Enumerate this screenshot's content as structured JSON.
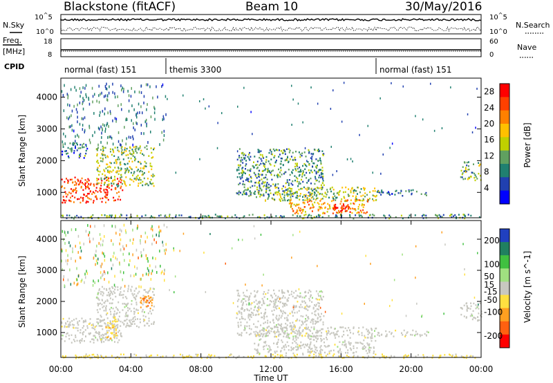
{
  "header": {
    "site": "Blackstone (fitACF)",
    "beam": "Beam 10",
    "date": "30/May/2016"
  },
  "left_labels": {
    "nsky": "N.Sky",
    "nsky_ticks": [
      "10^5",
      "10^0"
    ],
    "freq": "Freq.",
    "freq_unit": "[MHz]",
    "freq_ticks": [
      "18",
      "8"
    ],
    "cpid": "CPID"
  },
  "right_labels": {
    "nsearch": "N.Search",
    "nsearch_ticks": [
      "10^5",
      "10^0"
    ],
    "nave": "Nave",
    "nave_ticks": [
      "60",
      "0"
    ]
  },
  "cpid_segments": [
    {
      "label": "normal (fast) 151",
      "start_hour": 0
    },
    {
      "label": "themis 3300",
      "start_hour": 6
    },
    {
      "label": "normal (fast) 151",
      "start_hour": 18
    }
  ],
  "x_axis": {
    "label": "Time UT",
    "ticks": [
      "00:00",
      "04:00",
      "08:00",
      "12:00",
      "16:00",
      "20:00",
      "00:00"
    ],
    "range_hours": [
      0,
      24
    ]
  },
  "chart_data": [
    {
      "type": "heatmap",
      "title": "",
      "xlabel": "Time UT",
      "ylabel": "Slant Range [km]",
      "ylim": [
        200,
        4600
      ],
      "y_ticks": [
        1000,
        2000,
        3000,
        4000
      ],
      "colorbar": {
        "label": "Power [dB]",
        "ticks": [
          4,
          8,
          12,
          16,
          20,
          24,
          28
        ],
        "range": [
          0,
          30
        ],
        "colors": [
          "#0000ff",
          "#2040b0",
          "#208070",
          "#60a060",
          "#c0d000",
          "#ffc000",
          "#ff8000",
          "#ff4000",
          "#ff0000"
        ]
      },
      "echo_regions": [
        {
          "t_start": 0.0,
          "t_end": 3.5,
          "range_min": 700,
          "range_max": 1500,
          "power": 26
        },
        {
          "t_start": 0.0,
          "t_end": 1.5,
          "range_min": 2100,
          "range_max": 2600,
          "power": 8
        },
        {
          "t_start": 2.0,
          "t_end": 5.3,
          "range_min": 1200,
          "range_max": 2500,
          "power": 14
        },
        {
          "t_start": 0.0,
          "t_end": 24.0,
          "range_min": 200,
          "range_max": 330,
          "power": 10
        },
        {
          "t_start": 11.0,
          "t_end": 18.0,
          "range_min": 750,
          "range_max": 1200,
          "power": 14
        },
        {
          "t_start": 13.0,
          "t_end": 17.5,
          "range_min": 350,
          "range_max": 800,
          "power": 20
        },
        {
          "t_start": 15.5,
          "t_end": 16.5,
          "range_min": 380,
          "range_max": 650,
          "power": 28
        },
        {
          "t_start": 10.0,
          "t_end": 15.0,
          "range_min": 900,
          "range_max": 2400,
          "power": 10
        },
        {
          "t_start": 18.0,
          "t_end": 21.0,
          "range_min": 900,
          "range_max": 1100,
          "power": 8
        },
        {
          "t_start": 22.8,
          "t_end": 24.0,
          "range_min": 1400,
          "range_max": 2000,
          "power": 12
        }
      ]
    },
    {
      "type": "heatmap",
      "title": "",
      "xlabel": "Time UT",
      "ylabel": "Slant Range [km]",
      "ylim": [
        200,
        4600
      ],
      "y_ticks": [
        1000,
        2000,
        3000,
        4000
      ],
      "colorbar": {
        "label": "Velocity [m s^-1]",
        "ticks": [
          200,
          100,
          50,
          15,
          -15,
          -50,
          -100,
          -200
        ],
        "range": [
          -250,
          250
        ],
        "colors": [
          "#2040c0",
          "#208060",
          "#40c040",
          "#a0e080",
          "#c8c8c0",
          "#ffe040",
          "#ffa020",
          "#ff6010",
          "#ff0000"
        ]
      },
      "echo_regions": [
        {
          "t_start": 0.0,
          "t_end": 3.5,
          "range_min": 700,
          "range_max": 1500,
          "velocity": 0
        },
        {
          "t_start": 2.0,
          "t_end": 5.3,
          "range_min": 1200,
          "range_max": 2500,
          "velocity": 0
        },
        {
          "t_start": 2.5,
          "t_end": 3.2,
          "range_min": 800,
          "range_max": 1500,
          "velocity": -60
        },
        {
          "t_start": 4.5,
          "t_end": 5.2,
          "range_min": 1800,
          "range_max": 2200,
          "velocity": -120
        },
        {
          "t_start": 0.0,
          "t_end": 24.0,
          "range_min": 200,
          "range_max": 330,
          "velocity": -40
        },
        {
          "t_start": 11.0,
          "t_end": 18.0,
          "range_min": 350,
          "range_max": 1200,
          "velocity": 0
        },
        {
          "t_start": 10.0,
          "t_end": 15.0,
          "range_min": 900,
          "range_max": 2400,
          "velocity": 0
        },
        {
          "t_start": 18.0,
          "t_end": 21.0,
          "range_min": 900,
          "range_max": 1100,
          "velocity": 0
        },
        {
          "t_start": 22.8,
          "t_end": 24.0,
          "range_min": 1400,
          "range_max": 2000,
          "velocity": 0
        }
      ]
    }
  ]
}
